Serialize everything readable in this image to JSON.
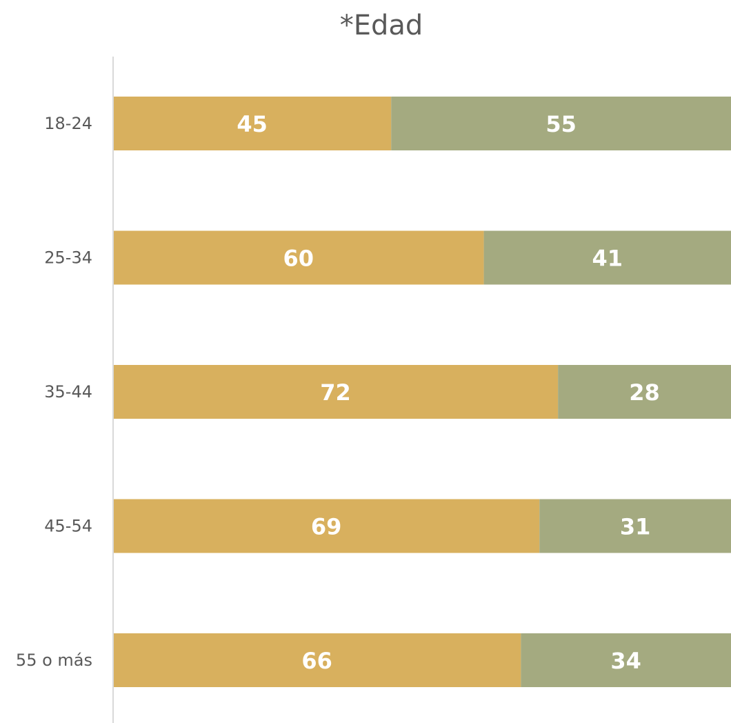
{
  "chart_data": {
    "type": "bar",
    "orientation": "horizontal",
    "stacked": true,
    "title": "*Edad",
    "xlabel": "",
    "ylabel": "",
    "categories": [
      "18-24",
      "25-34",
      "35-44",
      "45-54",
      "55 o más"
    ],
    "series": [
      {
        "values": [
          45,
          60,
          72,
          69,
          66
        ],
        "color": "#D8B05E"
      },
      {
        "values": [
          55,
          41,
          28,
          31,
          34
        ],
        "color": "#A4AA80"
      }
    ],
    "xlim": [
      0,
      100
    ],
    "grid": false,
    "legend": "none",
    "axis_color": "#D9D9D9"
  }
}
